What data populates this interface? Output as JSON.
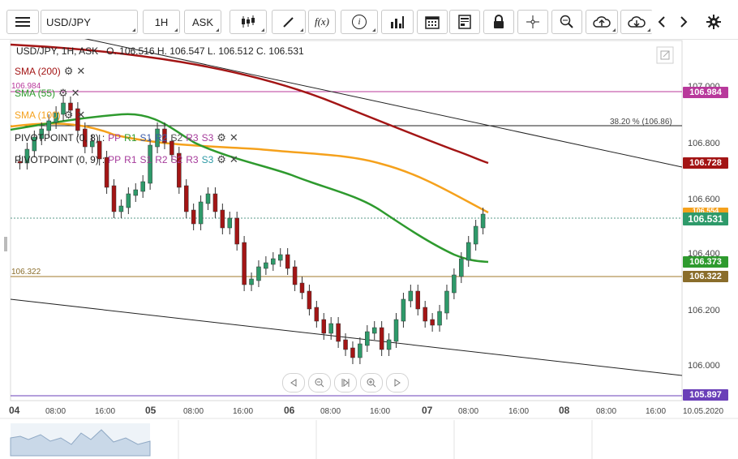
{
  "toolbar": {
    "symbol": "USD/JPY",
    "timeframe": "1H",
    "price_type": "ASK",
    "fx_label": "f(x)",
    "info_label": "i"
  },
  "header": {
    "ohlc_line": "USD/JPY, 1H, ASK   O. 106.516 H. 106.547 L. 106.512 C. 106.531"
  },
  "indicators": [
    {
      "label": "SMA (200)",
      "color": "#a31515"
    },
    {
      "label": "SMA (55)",
      "color": "#2e9a2e"
    },
    {
      "label": "SMA (100)",
      "color": "#f5a11c"
    }
  ],
  "pivots": [
    {
      "label": "PIVOTPOINT (0, 8)",
      "parts": [
        "PP",
        "R1",
        "S1",
        "R2",
        "S2",
        "R3",
        "S3"
      ]
    },
    {
      "label": "PIVOTPOINT (0, 9)",
      "parts": [
        "PP",
        "R1",
        "S1",
        "R2",
        "S2",
        "R3",
        "S3"
      ]
    }
  ],
  "price_axis": {
    "ticks": [
      "107.000",
      "106.800",
      "106.600",
      "106.400",
      "106.200",
      "106.000"
    ],
    "tags": [
      {
        "value": "106.984",
        "color": "#b8399b"
      },
      {
        "value": "106.728",
        "color": "#a31515"
      },
      {
        "value": "106.554",
        "color": "#f5a11c"
      },
      {
        "value": "106.531",
        "color": "#2e9a6a"
      },
      {
        "value": "106.373",
        "color": "#2e9a2e"
      },
      {
        "value": "106.322",
        "color": "#8a6d2b"
      },
      {
        "value": "105.897",
        "color": "#6a3fb8"
      }
    ]
  },
  "left_labels": {
    "top_value": "106.984",
    "level_value": "106.322"
  },
  "fib_label": "38.20 % (106.86)",
  "time_axis": {
    "labels": [
      "04",
      "08:00",
      "16:00",
      "05",
      "08:00",
      "16:00",
      "06",
      "08:00",
      "16:00",
      "07",
      "08:00",
      "16:00",
      "08",
      "08:00",
      "16:00",
      "10.05.2020"
    ]
  }
}
